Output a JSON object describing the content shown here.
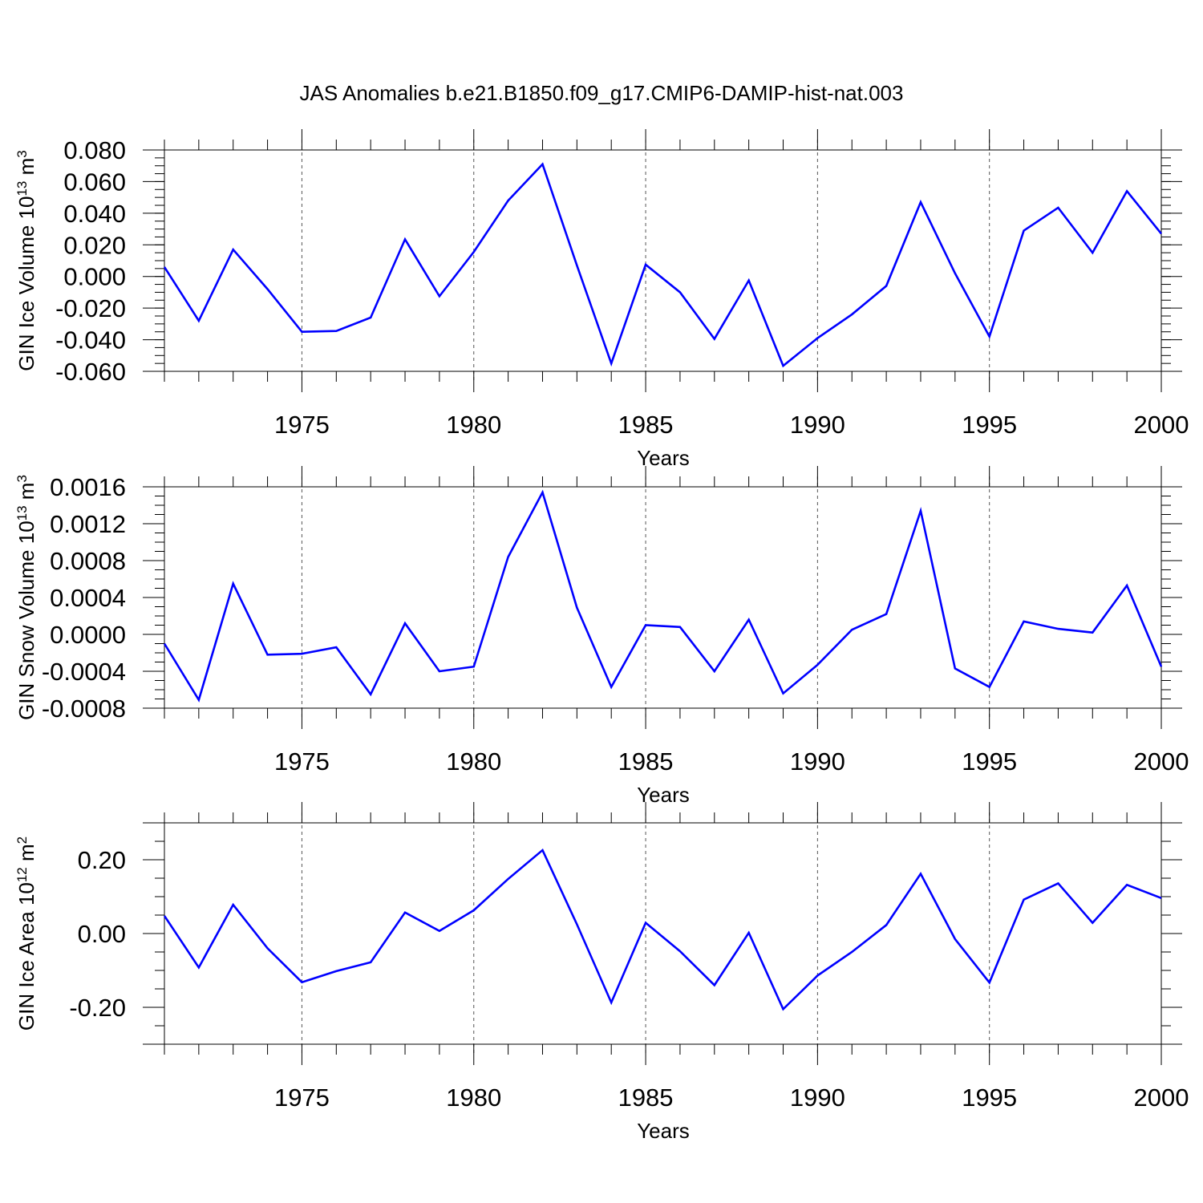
{
  "figure": {
    "title": "JAS Anomalies b.e21.B1850.f09_g17.CMIP6-DAMIP-hist-nat.003",
    "line_color": "#0000ff",
    "grid_color": "#555555"
  },
  "chart_data": [
    {
      "type": "line",
      "ylabel": "GIN Ice Volume 10",
      "ylabel_exp": "13",
      "ylabel_unit": " m",
      "ylabel_unit_exp": "3",
      "xlabel": "Years",
      "xlim": [
        1971,
        2000
      ],
      "ylim": [
        -0.06,
        0.08
      ],
      "yticks": [
        -0.06,
        -0.04,
        -0.02,
        0.0,
        0.02,
        0.04,
        0.06,
        0.08
      ],
      "ytick_labels": [
        "-0.060",
        "-0.040",
        "-0.020",
        "0.000",
        "0.020",
        "0.040",
        "0.060",
        "0.080"
      ],
      "yminor_step": 0.005,
      "xticks": [
        1975,
        1980,
        1985,
        1990,
        1995,
        2000
      ],
      "xtick_labels": [
        "1975",
        "1980",
        "1985",
        "1990",
        "1995",
        "2000"
      ],
      "series": [
        {
          "name": "GIN Ice Volume anomaly",
          "x": [
            1971,
            1972,
            1973,
            1974,
            1975,
            1976,
            1977,
            1978,
            1979,
            1980,
            1981,
            1982,
            1983,
            1984,
            1985,
            1986,
            1987,
            1988,
            1989,
            1990,
            1991,
            1992,
            1993,
            1994,
            1995,
            1996,
            1997,
            1998,
            1999,
            2000
          ],
          "values": [
            0.006,
            -0.028,
            0.017,
            -0.008,
            -0.035,
            -0.0345,
            -0.026,
            0.0235,
            -0.0125,
            0.0155,
            0.048,
            0.071,
            0.007,
            -0.055,
            0.0075,
            -0.01,
            -0.0395,
            -0.0025,
            -0.0565,
            -0.039,
            -0.024,
            -0.006,
            0.047,
            0.002,
            -0.038,
            0.029,
            0.0435,
            0.015,
            0.054,
            0.027
          ]
        }
      ]
    },
    {
      "type": "line",
      "ylabel": "GIN Snow Volume 10",
      "ylabel_exp": "13",
      "ylabel_unit": " m",
      "ylabel_unit_exp": "3",
      "xlabel": "Years",
      "xlim": [
        1971,
        2000
      ],
      "ylim": [
        -0.0008,
        0.0016
      ],
      "yticks": [
        -0.0008,
        -0.0004,
        0.0,
        0.0004,
        0.0008,
        0.0012,
        0.0016
      ],
      "ytick_labels": [
        "-0.0008",
        "-0.0004",
        "0.0000",
        "0.0004",
        "0.0008",
        "0.0012",
        "0.0016"
      ],
      "yminor_step": 0.0001,
      "xticks": [
        1975,
        1980,
        1985,
        1990,
        1995,
        2000
      ],
      "xtick_labels": [
        "1975",
        "1980",
        "1985",
        "1990",
        "1995",
        "2000"
      ],
      "series": [
        {
          "name": "GIN Snow Volume anomaly",
          "x": [
            1971,
            1972,
            1973,
            1974,
            1975,
            1976,
            1977,
            1978,
            1979,
            1980,
            1981,
            1982,
            1983,
            1984,
            1985,
            1986,
            1987,
            1988,
            1989,
            1990,
            1991,
            1992,
            1993,
            1994,
            1995,
            1996,
            1997,
            1998,
            1999,
            2000
          ],
          "values": [
            -0.0001,
            -0.00071,
            0.00055,
            -0.00022,
            -0.00021,
            -0.00014,
            -0.00065,
            0.00012,
            -0.0004,
            -0.00035,
            0.00084,
            0.00154,
            0.00029,
            -0.00057,
            0.0001,
            8e-05,
            -0.0004,
            0.00016,
            -0.00064,
            -0.00033,
            5e-05,
            0.00022,
            0.00134,
            -0.00037,
            -0.00057,
            0.00014,
            6e-05,
            2e-05,
            0.00053,
            -0.00035
          ]
        }
      ]
    },
    {
      "type": "line",
      "ylabel": "GIN Ice Area 10",
      "ylabel_exp": "12",
      "ylabel_unit": " m",
      "ylabel_unit_exp": "2",
      "xlabel": "Years",
      "xlim": [
        1971,
        2000
      ],
      "ylim": [
        -0.3,
        0.3
      ],
      "yticks": [
        -0.2,
        0.0,
        0.2
      ],
      "ytick_labels": [
        "-0.20",
        "0.00",
        "0.20"
      ],
      "yminor_step": 0.05,
      "xticks": [
        1975,
        1980,
        1985,
        1990,
        1995,
        2000
      ],
      "xtick_labels": [
        "1975",
        "1980",
        "1985",
        "1990",
        "1995",
        "2000"
      ],
      "series": [
        {
          "name": "GIN Ice Area anomaly",
          "x": [
            1971,
            1972,
            1973,
            1974,
            1975,
            1976,
            1977,
            1978,
            1979,
            1980,
            1981,
            1982,
            1983,
            1984,
            1985,
            1986,
            1987,
            1988,
            1989,
            1990,
            1991,
            1992,
            1993,
            1994,
            1995,
            1996,
            1997,
            1998,
            1999,
            2000
          ],
          "values": [
            0.048,
            -0.092,
            0.078,
            -0.04,
            -0.132,
            -0.102,
            -0.078,
            0.057,
            0.007,
            0.063,
            0.148,
            0.226,
            0.025,
            -0.187,
            0.029,
            -0.048,
            -0.14,
            0.002,
            -0.205,
            -0.114,
            -0.05,
            0.023,
            0.162,
            -0.015,
            -0.133,
            0.092,
            0.136,
            0.029,
            0.132,
            0.096
          ]
        }
      ]
    }
  ]
}
